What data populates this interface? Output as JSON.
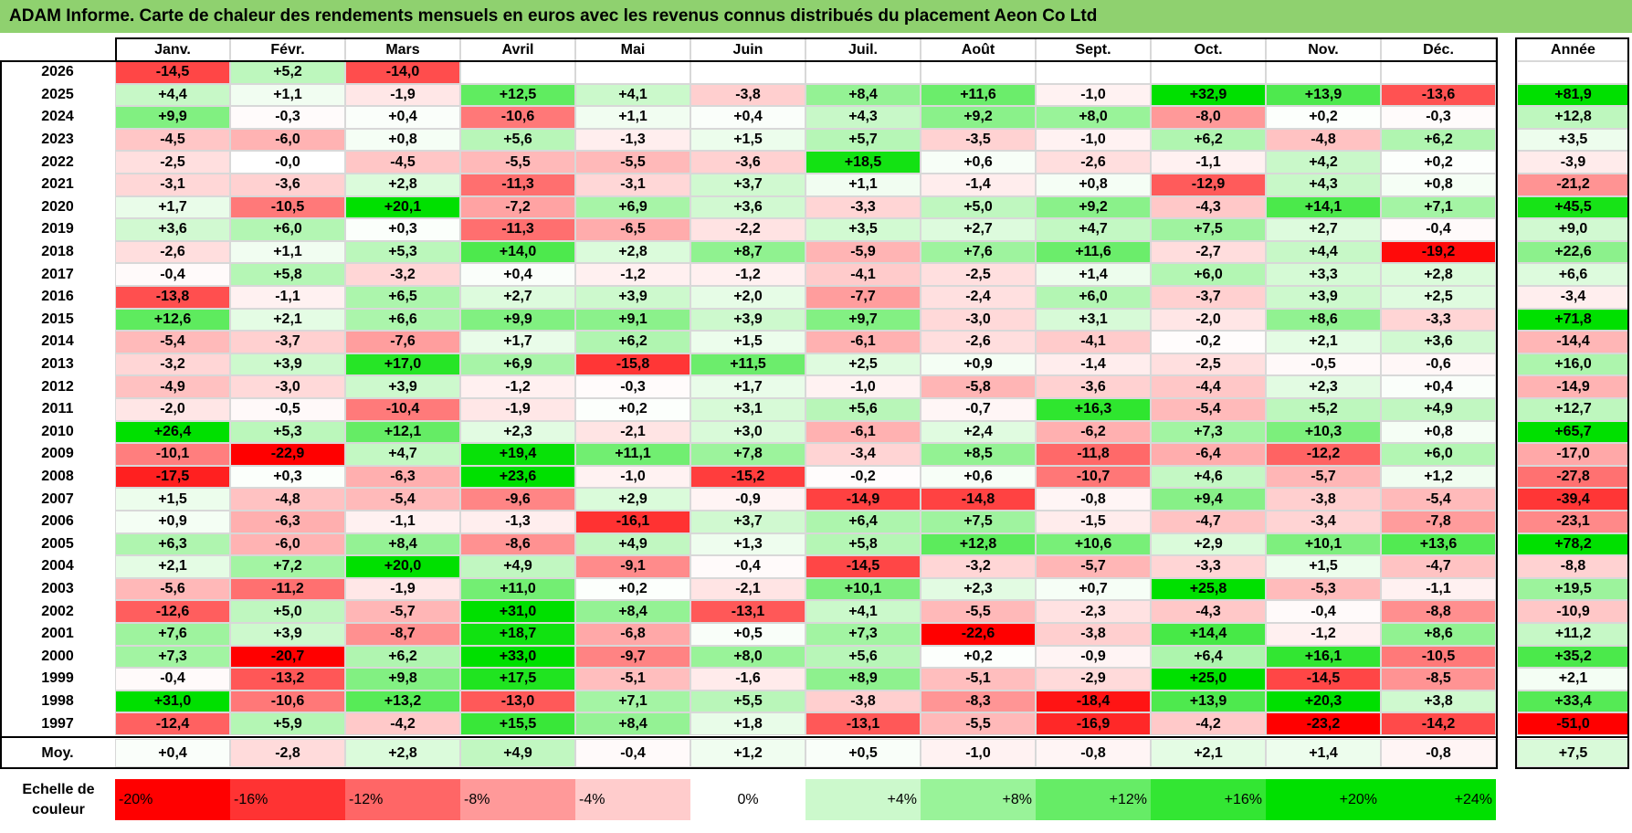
{
  "title": "ADAM Informe. Carte de chaleur des rendements mensuels en euros avec les revenus connus distribués du placement Aeon Co Ltd",
  "colors": {
    "title_bg": "#8fd16f",
    "neg_max": "#ff0000",
    "neutral": "#ffffff",
    "pos_max": "#00e000"
  },
  "chart_data": {
    "type": "heatmap",
    "title": "ADAM Informe. Carte de chaleur des rendements mensuels en euros avec les revenus connus distribués du placement Aeon Co Ltd",
    "months": [
      "Janv.",
      "Févr.",
      "Mars",
      "Avril",
      "Mai",
      "Juin",
      "Juil.",
      "Août",
      "Sept.",
      "Oct.",
      "Nov.",
      "Déc."
    ],
    "year_header": "Année",
    "avg_label": "Moy.",
    "rows": [
      {
        "year": "2026",
        "m": [
          "-14,5",
          "+5,2",
          "-14,0",
          "",
          "",
          "",
          "",
          "",
          "",
          "",
          "",
          ""
        ],
        "y": ""
      },
      {
        "year": "2025",
        "m": [
          "+4,4",
          "+1,1",
          "-1,9",
          "+12,5",
          "+4,1",
          "-3,8",
          "+8,4",
          "+11,6",
          "-1,0",
          "+32,9",
          "+13,9",
          "-13,6"
        ],
        "y": "+81,9"
      },
      {
        "year": "2024",
        "m": [
          "+9,9",
          "-0,3",
          "+0,4",
          "-10,6",
          "+1,1",
          "+0,4",
          "+4,3",
          "+9,2",
          "+8,0",
          "-8,0",
          "+0,2",
          "-0,3"
        ],
        "y": "+12,8"
      },
      {
        "year": "2023",
        "m": [
          "-4,5",
          "-6,0",
          "+0,8",
          "+5,6",
          "-1,3",
          "+1,5",
          "+5,7",
          "-3,5",
          "-1,0",
          "+6,2",
          "-4,8",
          "+6,2"
        ],
        "y": "+3,5"
      },
      {
        "year": "2022",
        "m": [
          "-2,5",
          "-0,0",
          "-4,5",
          "-5,5",
          "-5,5",
          "-3,6",
          "+18,5",
          "+0,6",
          "-2,6",
          "-1,1",
          "+4,2",
          "+0,2"
        ],
        "y": "-3,9"
      },
      {
        "year": "2021",
        "m": [
          "-3,1",
          "-3,6",
          "+2,8",
          "-11,3",
          "-3,1",
          "+3,7",
          "+1,1",
          "-1,4",
          "+0,8",
          "-12,9",
          "+4,3",
          "+0,8"
        ],
        "y": "-21,2"
      },
      {
        "year": "2020",
        "m": [
          "+1,7",
          "-10,5",
          "+20,1",
          "-7,2",
          "+6,9",
          "+3,6",
          "-3,3",
          "+5,0",
          "+9,2",
          "-4,3",
          "+14,1",
          "+7,1"
        ],
        "y": "+45,5"
      },
      {
        "year": "2019",
        "m": [
          "+3,6",
          "+6,0",
          "+0,3",
          "-11,3",
          "-6,5",
          "-2,2",
          "+3,5",
          "+2,7",
          "+4,7",
          "+7,5",
          "+2,7",
          "-0,4"
        ],
        "y": "+9,0"
      },
      {
        "year": "2018",
        "m": [
          "-2,6",
          "+1,1",
          "+5,3",
          "+14,0",
          "+2,8",
          "+8,7",
          "-5,9",
          "+7,6",
          "+11,6",
          "-2,7",
          "+4,4",
          "-19,2"
        ],
        "y": "+22,6"
      },
      {
        "year": "2017",
        "m": [
          "-0,4",
          "+5,8",
          "-3,2",
          "+0,4",
          "-1,2",
          "-1,2",
          "-4,1",
          "-2,5",
          "+1,4",
          "+6,0",
          "+3,3",
          "+2,8"
        ],
        "y": "+6,6"
      },
      {
        "year": "2016",
        "m": [
          "-13,8",
          "-1,1",
          "+6,5",
          "+2,7",
          "+3,9",
          "+2,0",
          "-7,7",
          "-2,4",
          "+6,0",
          "-3,7",
          "+3,9",
          "+2,5"
        ],
        "y": "-3,4"
      },
      {
        "year": "2015",
        "m": [
          "+12,6",
          "+2,1",
          "+6,6",
          "+9,9",
          "+9,1",
          "+3,9",
          "+9,7",
          "-3,0",
          "+3,1",
          "-2,0",
          "+8,6",
          "-3,3"
        ],
        "y": "+71,8"
      },
      {
        "year": "2014",
        "m": [
          "-5,4",
          "-3,7",
          "-7,6",
          "+1,7",
          "+6,2",
          "+1,5",
          "-6,1",
          "-2,6",
          "-4,1",
          "-0,2",
          "+2,1",
          "+3,6"
        ],
        "y": "-14,4"
      },
      {
        "year": "2013",
        "m": [
          "-3,2",
          "+3,9",
          "+17,0",
          "+6,9",
          "-15,8",
          "+11,5",
          "+2,5",
          "+0,9",
          "-1,4",
          "-2,5",
          "-0,5",
          "-0,6"
        ],
        "y": "+16,0"
      },
      {
        "year": "2012",
        "m": [
          "-4,9",
          "-3,0",
          "+3,9",
          "-1,2",
          "-0,3",
          "+1,7",
          "-1,0",
          "-5,8",
          "-3,6",
          "-4,4",
          "+2,3",
          "+0,4"
        ],
        "y": "-14,9"
      },
      {
        "year": "2011",
        "m": [
          "-2,0",
          "-0,5",
          "-10,4",
          "-1,9",
          "+0,2",
          "+3,1",
          "+5,6",
          "-0,7",
          "+16,3",
          "-5,4",
          "+5,2",
          "+4,9"
        ],
        "y": "+12,7"
      },
      {
        "year": "2010",
        "m": [
          "+26,4",
          "+5,3",
          "+12,1",
          "+2,3",
          "-2,1",
          "+3,0",
          "-6,1",
          "+2,4",
          "-6,2",
          "+7,3",
          "+10,3",
          "+0,8"
        ],
        "y": "+65,7"
      },
      {
        "year": "2009",
        "m": [
          "-10,1",
          "-22,9",
          "+4,7",
          "+19,4",
          "+11,1",
          "+7,8",
          "-3,4",
          "+8,5",
          "-11,8",
          "-6,4",
          "-12,2",
          "+6,0"
        ],
        "y": "-17,0"
      },
      {
        "year": "2008",
        "m": [
          "-17,5",
          "+0,3",
          "-6,3",
          "+23,6",
          "-1,0",
          "-15,2",
          "-0,2",
          "+0,6",
          "-10,7",
          "+4,6",
          "-5,7",
          "+1,2"
        ],
        "y": "-27,8"
      },
      {
        "year": "2007",
        "m": [
          "+1,5",
          "-4,8",
          "-5,4",
          "-9,6",
          "+2,9",
          "-0,9",
          "-14,9",
          "-14,8",
          "-0,8",
          "+9,4",
          "-3,8",
          "-5,4"
        ],
        "y": "-39,4"
      },
      {
        "year": "2006",
        "m": [
          "+0,9",
          "-6,3",
          "-1,1",
          "-1,3",
          "-16,1",
          "+3,7",
          "+6,4",
          "+7,5",
          "-1,5",
          "-4,7",
          "-3,4",
          "-7,8"
        ],
        "y": "-23,1"
      },
      {
        "year": "2005",
        "m": [
          "+6,3",
          "-6,0",
          "+8,4",
          "-8,6",
          "+4,9",
          "+1,3",
          "+5,8",
          "+12,8",
          "+10,6",
          "+2,9",
          "+10,1",
          "+13,6"
        ],
        "y": "+78,2"
      },
      {
        "year": "2004",
        "m": [
          "+2,1",
          "+7,2",
          "+20,0",
          "+4,9",
          "-9,1",
          "-0,4",
          "-14,5",
          "-3,2",
          "-5,7",
          "-3,3",
          "+1,5",
          "-4,7"
        ],
        "y": "-8,8"
      },
      {
        "year": "2003",
        "m": [
          "-5,6",
          "-11,2",
          "-1,9",
          "+11,0",
          "+0,2",
          "-2,1",
          "+10,1",
          "+2,3",
          "+0,7",
          "+25,8",
          "-5,3",
          "-1,1"
        ],
        "y": "+19,5"
      },
      {
        "year": "2002",
        "m": [
          "-12,6",
          "+5,0",
          "-5,7",
          "+31,0",
          "+8,4",
          "-13,1",
          "+4,1",
          "-5,5",
          "-2,3",
          "-4,3",
          "-0,4",
          "-8,8"
        ],
        "y": "-10,9"
      },
      {
        "year": "2001",
        "m": [
          "+7,6",
          "+3,9",
          "-8,7",
          "+18,7",
          "-6,8",
          "+0,5",
          "+7,3",
          "-22,6",
          "-3,8",
          "+14,4",
          "-1,2",
          "+8,6"
        ],
        "y": "+11,2"
      },
      {
        "year": "2000",
        "m": [
          "+7,3",
          "-20,7",
          "+6,2",
          "+33,0",
          "-9,7",
          "+8,0",
          "+5,6",
          "+0,2",
          "-0,9",
          "+6,4",
          "+16,1",
          "-10,5"
        ],
        "y": "+35,2"
      },
      {
        "year": "1999",
        "m": [
          "-0,4",
          "-13,2",
          "+9,8",
          "+17,5",
          "-5,1",
          "-1,6",
          "+8,9",
          "-5,1",
          "-2,9",
          "+25,0",
          "-14,5",
          "-8,5"
        ],
        "y": "+2,1"
      },
      {
        "year": "1998",
        "m": [
          "+31,0",
          "-10,6",
          "+13,2",
          "-13,0",
          "+7,1",
          "+5,5",
          "-3,8",
          "-8,3",
          "-18,4",
          "+13,9",
          "+20,3",
          "+3,8"
        ],
        "y": "+33,4"
      },
      {
        "year": "1997",
        "m": [
          "-12,4",
          "+5,9",
          "-4,2",
          "+15,5",
          "+8,4",
          "+1,8",
          "-13,1",
          "-5,5",
          "-16,9",
          "-4,2",
          "-23,2",
          "-14,2"
        ],
        "y": "-51,0"
      }
    ],
    "averages": [
      "+0,4",
      "-2,8",
      "+2,8",
      "+4,9",
      "-0,4",
      "+1,2",
      "+0,5",
      "-1,0",
      "-0,8",
      "+2,1",
      "+1,4",
      "-0,8"
    ],
    "average_year": "+7,5",
    "legend": {
      "label_line1": "Echelle de",
      "label_line2": "couleur",
      "stops": [
        "-20%",
        "-16%",
        "-12%",
        "-8%",
        "-4%",
        "0%",
        "+4%",
        "+8%",
        "+12%",
        "+16%",
        "+20%",
        "+24%"
      ],
      "stop_values": [
        -20,
        -16,
        -12,
        -8,
        -4,
        0,
        4,
        8,
        12,
        16,
        20,
        24
      ]
    }
  }
}
